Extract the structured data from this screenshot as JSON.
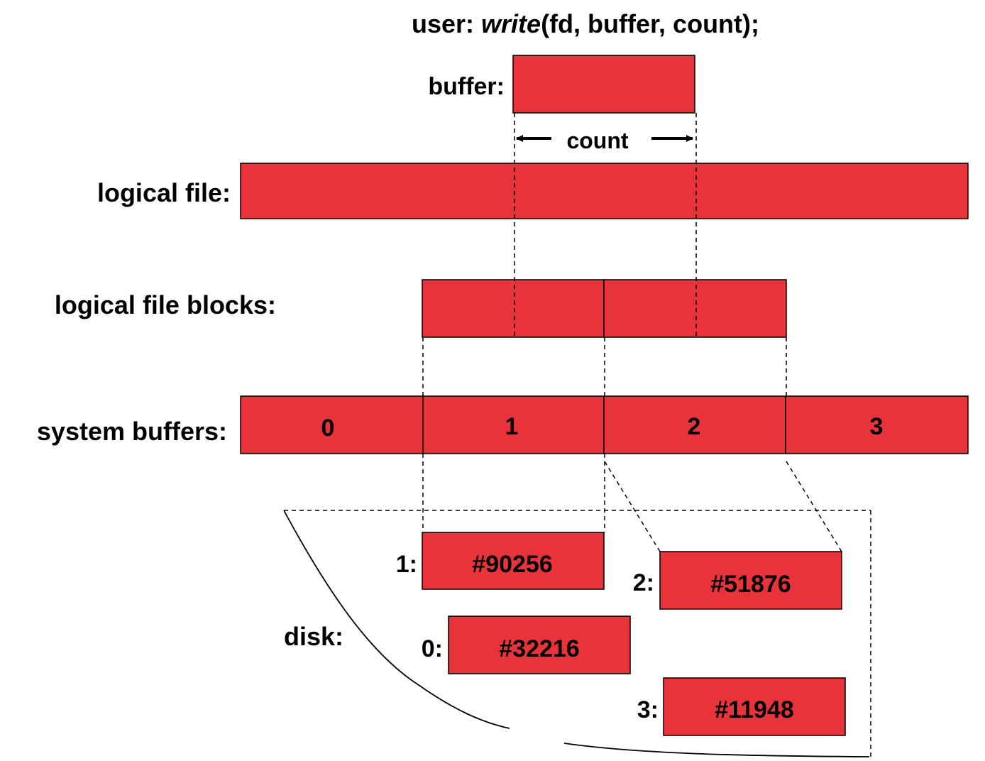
{
  "title": {
    "prefix": "user: ",
    "call": "write",
    "args": "(fd, buffer, count);"
  },
  "labels": {
    "buffer": "buffer:",
    "count": "count",
    "logical_file": "logical file:",
    "logical_file_blocks": "logical file blocks:",
    "system_buffers": "system buffers:",
    "disk": "disk:"
  },
  "system_buffers": [
    "0",
    "1",
    "2",
    "3"
  ],
  "disk_blocks": [
    {
      "index": "1:",
      "id": "#90256"
    },
    {
      "index": "2:",
      "id": "#51876"
    },
    {
      "index": "0:",
      "id": "#32216"
    },
    {
      "index": "3:",
      "id": "#11948"
    }
  ],
  "colors": {
    "block_fill": "#e8333a",
    "stroke": "#000000",
    "background": "#ffffff"
  }
}
